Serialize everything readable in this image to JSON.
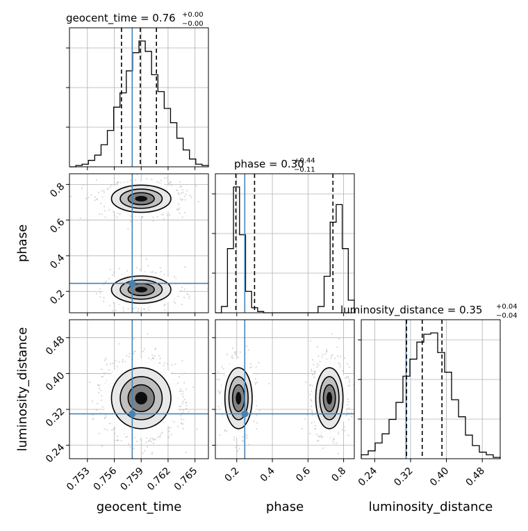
{
  "chart_data": {
    "type": "corner",
    "parameters": [
      "geocent_time",
      "phase",
      "luminosity_distance"
    ],
    "truth": {
      "geocent_time": 0.758,
      "phase": 0.245,
      "luminosity_distance": 0.31
    },
    "titles": {
      "geocent_time": {
        "name": "geocent_time",
        "value": "0.76",
        "plus": "+0.00",
        "minus": "−0.00"
      },
      "phase": {
        "name": "phase",
        "value": "0.30",
        "plus": "+0.44",
        "minus": "−0.11"
      },
      "luminosity_distance": {
        "name": "luminosity_distance",
        "value": "0.35",
        "plus": "+0.04",
        "minus": "−0.04"
      }
    },
    "axes": {
      "geocent_time": {
        "range": [
          0.751,
          0.7665
        ],
        "ticks": [
          0.753,
          0.756,
          0.759,
          0.762,
          0.765
        ],
        "tick_labels": [
          "0.753",
          "0.756",
          "0.759",
          "0.762",
          "0.765"
        ]
      },
      "phase": {
        "range": [
          0.08,
          0.86
        ],
        "ticks": [
          0.2,
          0.4,
          0.6,
          0.8
        ],
        "tick_labels": [
          "0.2",
          "0.4",
          "0.6",
          "0.8"
        ]
      },
      "luminosity_distance": {
        "range": [
          0.21,
          0.52
        ],
        "ticks": [
          0.24,
          0.32,
          0.4,
          0.48
        ],
        "tick_labels": [
          "0.24",
          "0.32",
          "0.40",
          "0.48"
        ]
      }
    },
    "quantiles": {
      "geocent_time": [
        0.7568,
        0.7589,
        0.7607
      ],
      "phase": [
        0.195,
        0.3,
        0.74
      ],
      "luminosity_distance": [
        0.311,
        0.346,
        0.39
      ]
    },
    "histograms": {
      "geocent_time": [
        0,
        1,
        2,
        5,
        9,
        17,
        28,
        46,
        57,
        74,
        88,
        97,
        89,
        71,
        58,
        45,
        34,
        22,
        13,
        6,
        2,
        1
      ],
      "phase": [
        0,
        5,
        51,
        100,
        62,
        17,
        4,
        1,
        0,
        0,
        0,
        0,
        0,
        0,
        0,
        0,
        0,
        5,
        29,
        72,
        86,
        51,
        10
      ],
      "luminosity_distance": [
        3,
        6,
        12,
        19,
        30,
        43,
        63,
        76,
        89,
        95,
        96,
        81,
        66,
        45,
        32,
        18,
        10,
        5,
        3,
        1
      ]
    },
    "modes": {
      "geocent_time": [
        0.759,
        0.00195,
        1.0
      ],
      "phase": [
        [
          0.72,
          0.045,
          0.6
        ],
        [
          0.21,
          0.045,
          0.4
        ]
      ],
      "luminosity_distance": [
        0.345,
        0.04,
        1.0
      ]
    },
    "grid": true,
    "colors": {
      "truth": "#4682b4",
      "line": "#000000",
      "scatter": "#bdbdbd"
    }
  }
}
